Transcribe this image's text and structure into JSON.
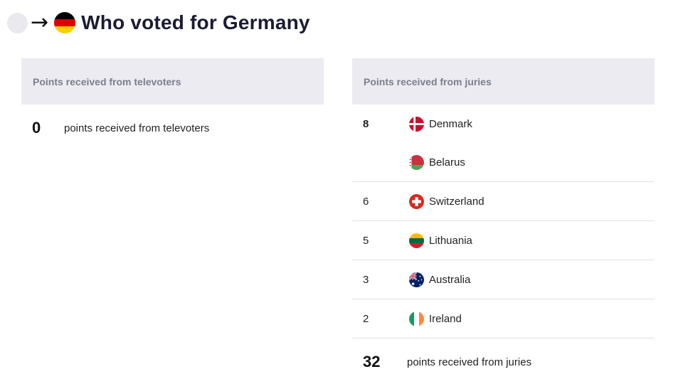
{
  "header": {
    "title": "Who voted for Germany",
    "arrow": "→",
    "placeholder_icon": "country-placeholder-icon",
    "flag_icon": "germany-flag-icon"
  },
  "televoters": {
    "heading": "Points received from televoters",
    "total": "0",
    "total_label": "points received from televoters"
  },
  "juries": {
    "heading": "Points received from juries",
    "groups": [
      {
        "points": "8",
        "bold": true,
        "countries": [
          {
            "name": "Denmark",
            "flag": "denmark-flag-icon"
          },
          {
            "name": "Belarus",
            "flag": "belarus-flag-icon"
          }
        ]
      },
      {
        "points": "6",
        "countries": [
          {
            "name": "Switzerland",
            "flag": "switzerland-flag-icon"
          }
        ]
      },
      {
        "points": "5",
        "countries": [
          {
            "name": "Lithuania",
            "flag": "lithuania-flag-icon"
          }
        ]
      },
      {
        "points": "3",
        "countries": [
          {
            "name": "Australia",
            "flag": "australia-flag-icon"
          }
        ]
      },
      {
        "points": "2",
        "countries": [
          {
            "name": "Ireland",
            "flag": "ireland-flag-icon"
          }
        ]
      }
    ],
    "total": "32",
    "total_label": "points received from juries"
  },
  "colors": {
    "panel_header_bg": "#ebebf1",
    "panel_header_text": "#7d7d8e",
    "title_text": "#1b1b33",
    "divider": "#e2e2e8"
  }
}
